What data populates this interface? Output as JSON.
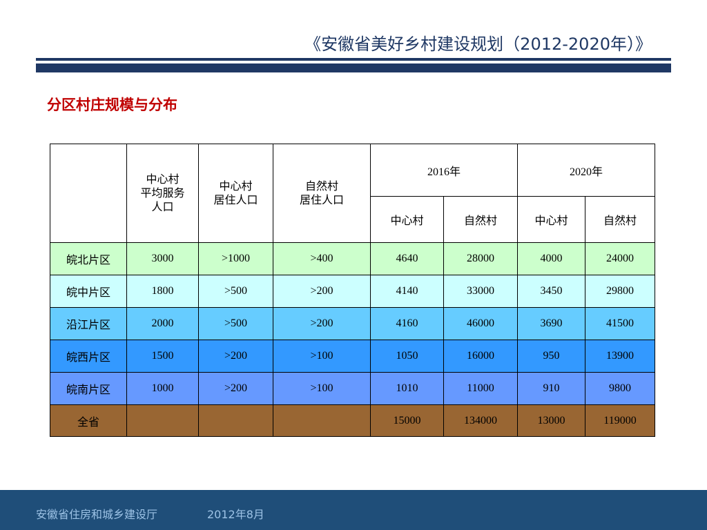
{
  "header": {
    "title": "《安徽省美好乡村建设规划（2012-2020年）》"
  },
  "section_title": "分区村庄规模与分布",
  "table": {
    "headers": {
      "blank": "",
      "center_avg_service_pop": "中心村\n平均服务\n人口",
      "center_resident_pop": "中心村\n居住人口",
      "natural_resident_pop": "自然村\n居住人口",
      "year_2016": "2016年",
      "year_2020": "2020年",
      "sub_center_2016": "中心村",
      "sub_natural_2016": "自然村",
      "sub_center_2020": "中心村",
      "sub_natural_2020": "自然村"
    },
    "rows": [
      {
        "region": "皖北片区",
        "avg_service": "3000",
        "center_pop": ">1000",
        "natural_pop": ">400",
        "c2016": "4640",
        "n2016": "28000",
        "c2020": "4000",
        "n2020": "24000"
      },
      {
        "region": "皖中片区",
        "avg_service": "1800",
        "center_pop": ">500",
        "natural_pop": ">200",
        "c2016": "4140",
        "n2016": "33000",
        "c2020": "3450",
        "n2020": "29800"
      },
      {
        "region": "沿江片区",
        "avg_service": "2000",
        "center_pop": ">500",
        "natural_pop": ">200",
        "c2016": "4160",
        "n2016": "46000",
        "c2020": "3690",
        "n2020": "41500"
      },
      {
        "region": "皖西片区",
        "avg_service": "1500",
        "center_pop": ">200",
        "natural_pop": ">100",
        "c2016": "1050",
        "n2016": "16000",
        "c2020": "950",
        "n2020": "13900"
      },
      {
        "region": "皖南片区",
        "avg_service": "1000",
        "center_pop": ">200",
        "natural_pop": ">100",
        "c2016": "1010",
        "n2016": "11000",
        "c2020": "910",
        "n2020": "9800"
      }
    ],
    "total": {
      "region": "全省",
      "avg_service": "",
      "center_pop": "",
      "natural_pop": "",
      "c2016": "15000",
      "n2016": "134000",
      "c2020": "13000",
      "n2020": "119000"
    }
  },
  "footer": {
    "organization": "安徽省住房和城乡建设厅",
    "date": "2012年8月"
  },
  "colors": {
    "title_navy": "#1f3864",
    "section_red": "#c00000",
    "row_wanbei": "#ccffcc",
    "row_wanzhong": "#ccffff",
    "row_yanjiang": "#66ccff",
    "row_wanxi": "#3399ff",
    "row_wannan": "#6699ff",
    "row_total": "#996633",
    "footer_bg": "#1f4e79"
  }
}
